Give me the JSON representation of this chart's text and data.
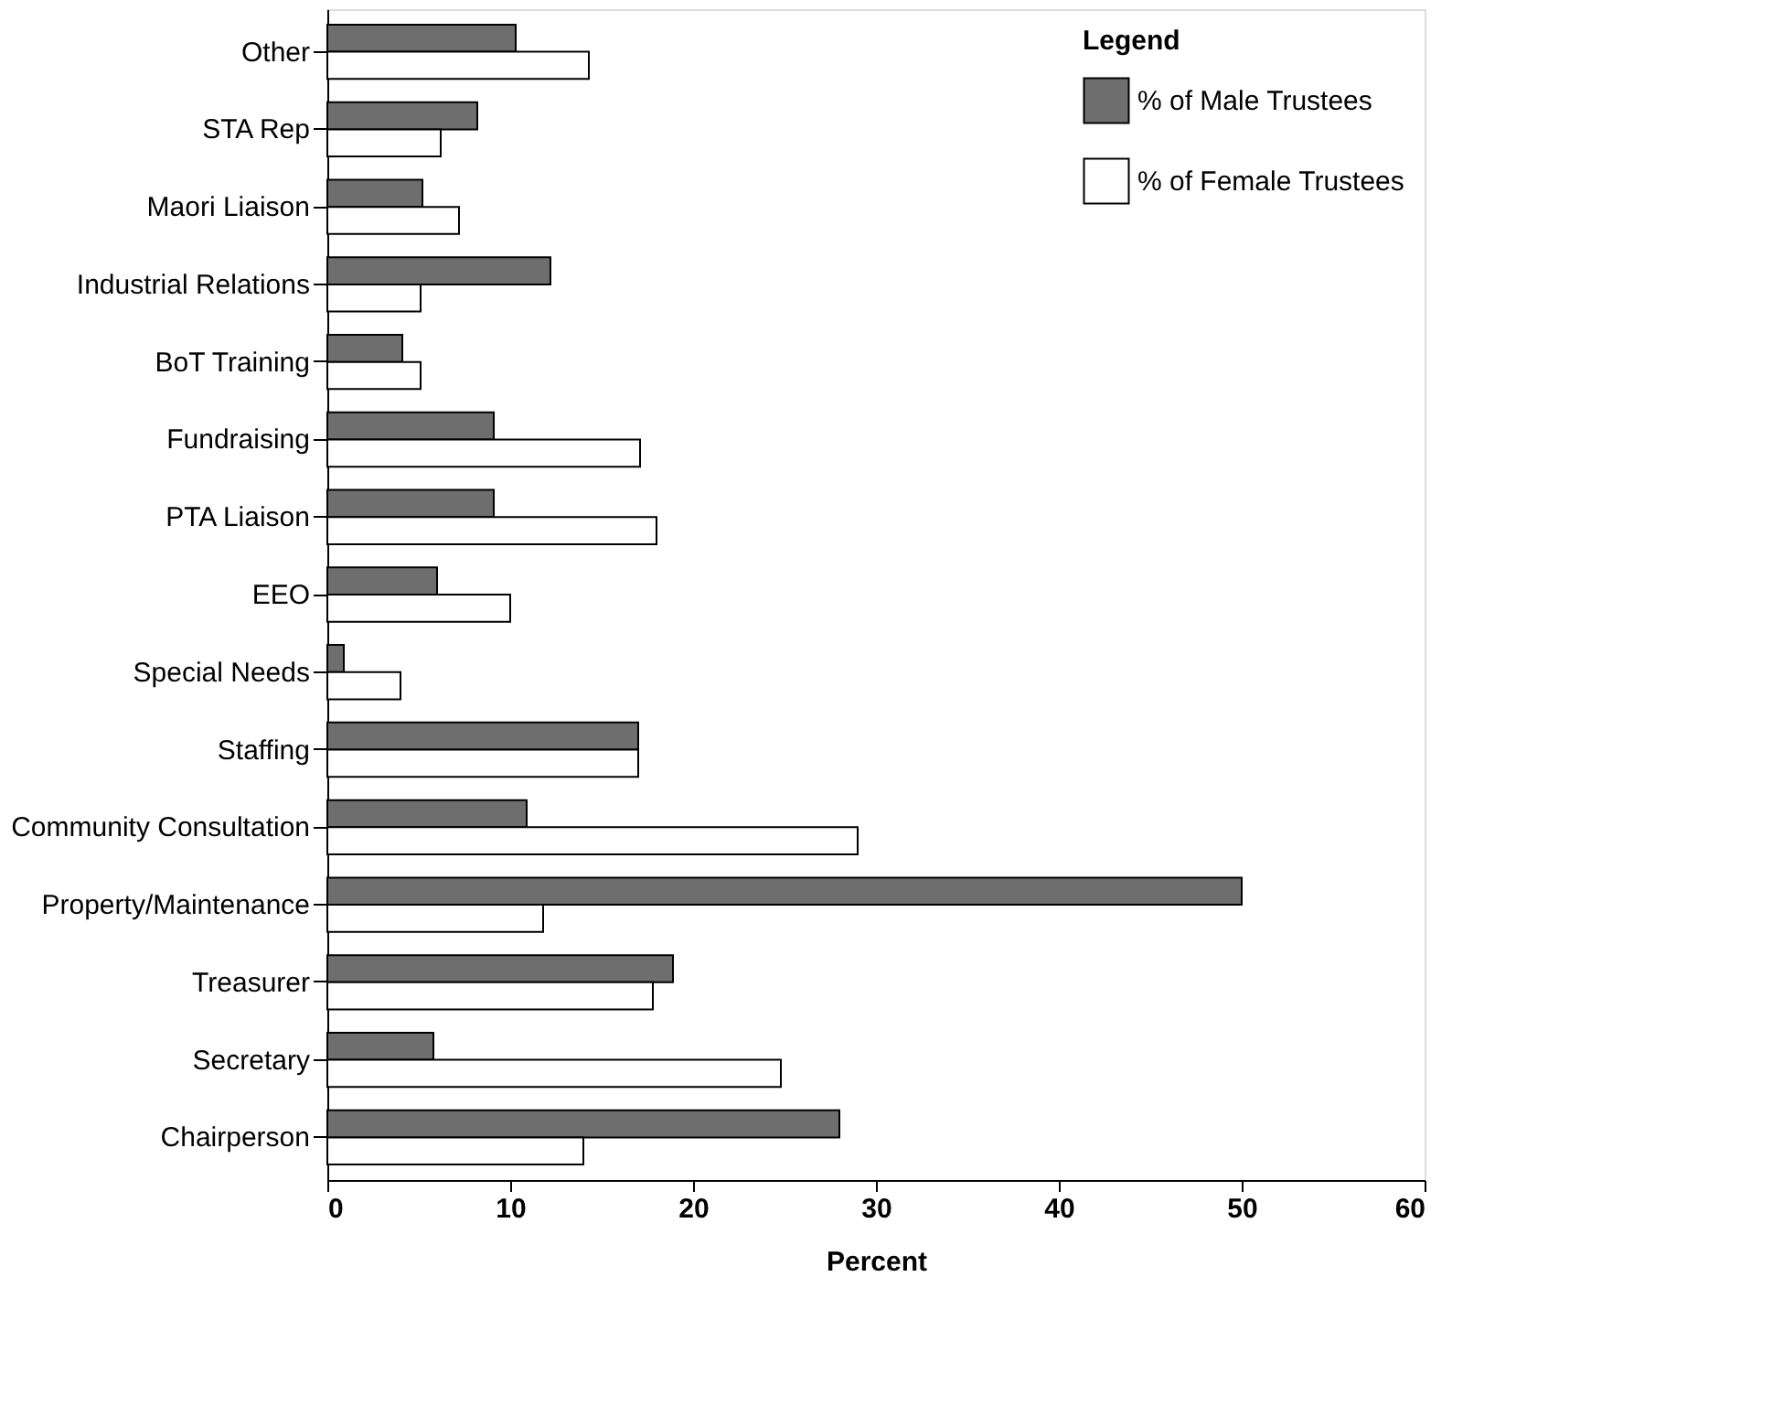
{
  "chart_data": {
    "type": "bar",
    "orientation": "horizontal",
    "xlabel": "Percent",
    "legend_title": "Legend",
    "legend": "top right",
    "grid": false,
    "categories": [
      "Other",
      "STA Rep",
      "Maori Liaison",
      "Industrial Relations",
      "BoT Training",
      "Fundraising",
      "PTA Liaison",
      "EEO",
      "Special Needs",
      "Staffing",
      "Community Consultation",
      "Property/Maintenance",
      "Treasurer",
      "Secretary",
      "Chairperson"
    ],
    "series": [
      {
        "name": "% of Male Trustees",
        "color": "#6e6e6e",
        "values": [
          10.3,
          8.2,
          5.2,
          12.2,
          4.1,
          9.1,
          9.1,
          6.0,
          0.9,
          17.0,
          10.9,
          50.0,
          18.9,
          5.8,
          28.0
        ]
      },
      {
        "name": "% of Female Trustees",
        "color": "#ffffff",
        "values": [
          14.3,
          6.2,
          7.2,
          5.1,
          5.1,
          17.1,
          18.0,
          10.0,
          4.0,
          17.0,
          29.0,
          11.8,
          17.8,
          24.8,
          14.0
        ]
      }
    ],
    "xlim": [
      0,
      60
    ],
    "xticks": [
      0,
      10,
      20,
      30,
      40,
      50,
      60
    ]
  }
}
